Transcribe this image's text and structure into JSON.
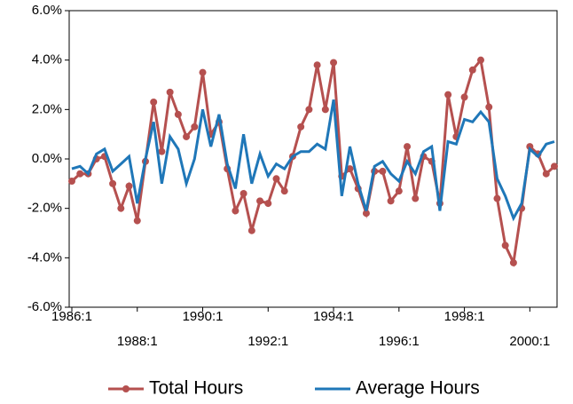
{
  "chart_data": {
    "type": "line",
    "categories": [
      "1986:1",
      null,
      null,
      null,
      null,
      null,
      null,
      null,
      "1988:1",
      null,
      null,
      null,
      null,
      null,
      null,
      null,
      "1990:1",
      null,
      null,
      null,
      null,
      null,
      null,
      null,
      "1992:1",
      null,
      null,
      null,
      null,
      null,
      null,
      null,
      "1994:1",
      null,
      null,
      null,
      null,
      null,
      null,
      null,
      "1996:1",
      null,
      null,
      null,
      null,
      null,
      null,
      null,
      "1998:1",
      null,
      null,
      null,
      null,
      null,
      null,
      null,
      "2000:1",
      null,
      null,
      null
    ],
    "series": [
      {
        "name": "Total Hours",
        "color": "#b5504f",
        "marker": true,
        "values": [
          -0.9,
          -0.6,
          -0.6,
          0.0,
          0.1,
          -1.0,
          -2.0,
          -1.1,
          -2.5,
          -0.1,
          2.3,
          0.3,
          2.7,
          1.8,
          0.9,
          1.3,
          3.5,
          1.0,
          1.5,
          -0.4,
          -2.1,
          -1.4,
          -2.9,
          -1.7,
          -1.8,
          -0.8,
          -1.3,
          0.1,
          1.3,
          2.0,
          3.8,
          2.0,
          3.9,
          -0.7,
          -0.4,
          -1.2,
          -2.2,
          -0.5,
          -0.5,
          -1.7,
          -1.3,
          0.5,
          -1.6,
          0.1,
          -0.1,
          -1.8,
          2.6,
          0.9,
          2.5,
          3.6,
          4.0,
          2.1,
          -1.6,
          -3.5,
          -4.2,
          -2.0,
          0.5,
          0.2,
          -0.6,
          -0.3
        ]
      },
      {
        "name": "Average Hours",
        "color": "#1f77b8",
        "marker": false,
        "values": [
          -0.4,
          -0.3,
          -0.6,
          0.2,
          0.4,
          -0.5,
          -0.2,
          0.1,
          -1.8,
          0.0,
          1.5,
          -1.0,
          0.9,
          0.4,
          -1.0,
          0.0,
          2.0,
          0.5,
          1.8,
          -0.2,
          -1.2,
          1.0,
          -1.0,
          0.2,
          -0.7,
          -0.2,
          -0.4,
          0.1,
          0.3,
          0.3,
          0.6,
          0.4,
          2.4,
          -1.5,
          0.5,
          -1.0,
          -2.1,
          -0.3,
          -0.1,
          -0.6,
          -0.9,
          -0.1,
          -0.6,
          0.3,
          0.5,
          -2.1,
          0.7,
          0.6,
          1.6,
          1.5,
          1.9,
          1.5,
          -0.8,
          -1.5,
          -2.4,
          -1.8,
          0.4,
          0.1,
          0.6,
          0.7
        ]
      }
    ],
    "ylim": [
      -6,
      6
    ],
    "yticks": [
      {
        "value": -6,
        "label": "-6.0%"
      },
      {
        "value": -4,
        "label": "-4.0%"
      },
      {
        "value": -2,
        "label": "-2.0%"
      },
      {
        "value": 0,
        "label": "0.0%"
      },
      {
        "value": 2,
        "label": "2.0%"
      },
      {
        "value": 4,
        "label": "4.0%"
      },
      {
        "value": 6,
        "label": "6.0%"
      }
    ],
    "grid": false,
    "legend": "bottom"
  }
}
